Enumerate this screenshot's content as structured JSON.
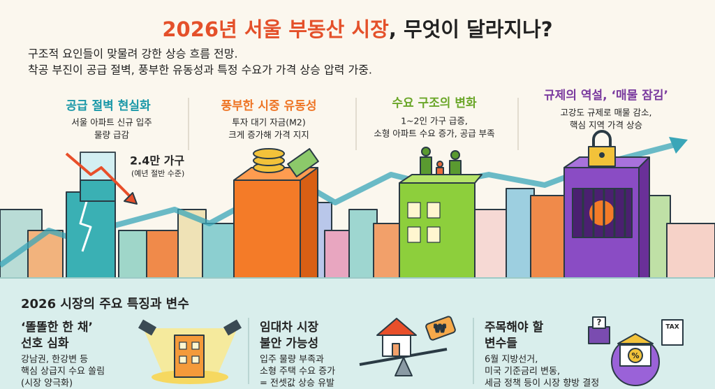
{
  "header": {
    "title_highlight": "2026년 서울 부동산 시장",
    "title_rest": ", 무엇이 달라지나?",
    "subtitle": [
      "구조적 요인들이 맞물려 강한 상승 흐름 전망.",
      "착공 부진이 공급 절벽, 풍부한 유동성과 특정 수요가 가격 상승 압력 가중."
    ]
  },
  "pillars": [
    {
      "heading": "공급 절벽 현실화",
      "lines": [
        "서울 아파트 신규 입주",
        "물량 급감"
      ],
      "callout": "2.4만 가구",
      "callout_note": "(예년 절반 수준)"
    },
    {
      "heading": "풍부한 시중 유동성",
      "lines": [
        "투자 대기 자금(M2)",
        "크게 증가해 가격 지지"
      ]
    },
    {
      "heading": "수요 구조의 변화",
      "lines": [
        "1~2인 가구 급증,",
        "소형 아파트 수요 증가, 공급 부족"
      ]
    },
    {
      "heading": "규제의 역설, ‘매물 잠김’",
      "lines": [
        "고강도 규제로 매물 감소,",
        "핵심 지역 가격 상승"
      ]
    }
  ],
  "section": {
    "heading": "2026 시장의 주요 특징과 변수",
    "features": [
      {
        "title": [
          "‘똘똘한 한 채’",
          "선호 심화"
        ],
        "body": [
          "강남권, 한강변 등",
          "핵심 상급지 수요 쏠림",
          "(시장 양극화)"
        ]
      },
      {
        "title": [
          "임대차 시장",
          "불안 가능성"
        ],
        "body": [
          "입주 물량 부족과",
          "소형 주택 수요 증가",
          "= 전셋값 상승 유발"
        ]
      },
      {
        "title": [
          "주목해야 할",
          "변수들"
        ],
        "body": [
          "6월 지방선거,",
          "미국 기준금리 변동,",
          "세금 정책 등이 시장 향방 결정"
        ]
      }
    ]
  },
  "icons": {
    "price_tag": "₩",
    "question": "?",
    "tax": "TAX",
    "percent": "%"
  }
}
